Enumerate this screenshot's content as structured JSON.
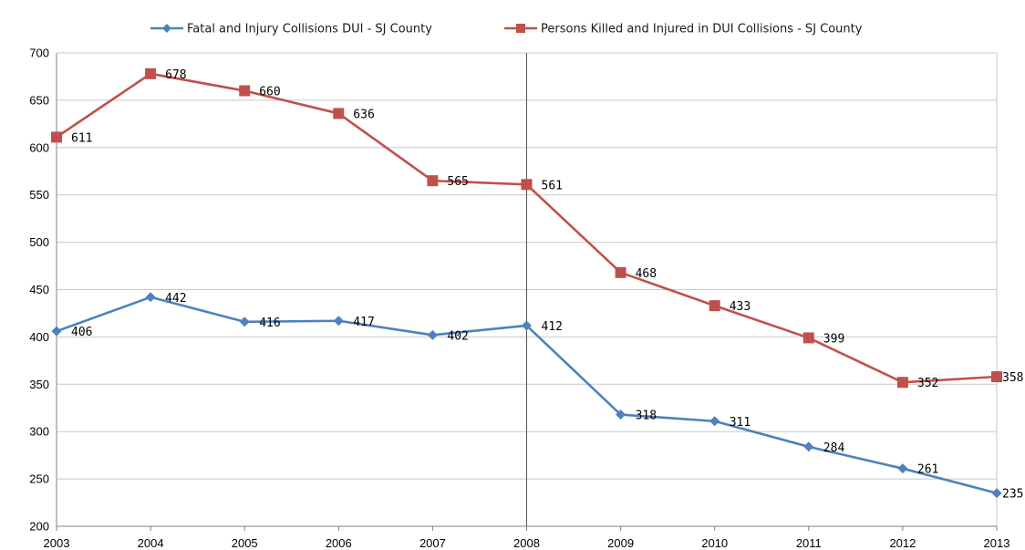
{
  "chart_data": {
    "type": "line",
    "title": "",
    "xlabel": "",
    "ylabel": "",
    "categories": [
      "2003",
      "2004",
      "2005",
      "2006",
      "2007",
      "2008",
      "2009",
      "2010",
      "2011",
      "2012",
      "2013"
    ],
    "ylim": [
      200,
      700
    ],
    "yticks": [
      200,
      250,
      300,
      350,
      400,
      450,
      500,
      550,
      600,
      650,
      700
    ],
    "grid": true,
    "legend_position": "top",
    "highlight_category": "2008",
    "series": [
      {
        "name": "Fatal and Injury Collisions DUI - SJ County",
        "color": "#4f81bd",
        "marker": "diamond",
        "values": [
          406,
          442,
          416,
          417,
          402,
          412,
          318,
          311,
          284,
          261,
          235
        ]
      },
      {
        "name": "Persons Killed and Injured in DUI Collisions - SJ County",
        "color": "#c0504d",
        "marker": "square",
        "values": [
          611,
          678,
          660,
          636,
          565,
          561,
          468,
          433,
          399,
          352,
          358
        ]
      }
    ]
  }
}
